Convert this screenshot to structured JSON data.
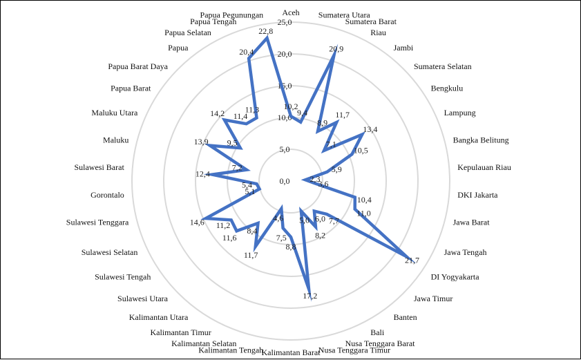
{
  "chart_data": {
    "type": "radar",
    "title": "",
    "categories": [
      "Aceh",
      "Sumatera Utara",
      "Sumatera Barat",
      "Riau",
      "Jambi",
      "Sumatera Selatan",
      "Bengkulu",
      "Lampung",
      "Bangka Belitung",
      "Kepulauan Riau",
      "DKI Jakarta",
      "Jawa Barat",
      "Jawa Tengah",
      "DI Yogyakarta",
      "Jawa Timur",
      "Banten",
      "Bali",
      "Nusa Tenggara Barat",
      "Nusa Tenggara Timur",
      "Kalimantan Barat",
      "Kalimantan Tengah",
      "Kalimantan Selatan",
      "Kalimantan Timur",
      "Kalimantan Utara",
      "Sulawesi Utara",
      "Sulawesi Tengah",
      "Sulawesi Selatan",
      "Sulawesi Tenggara",
      "Gorontalo",
      "Sulawesi Barat",
      "Maluku",
      "Maluku Utara",
      "Papua Barat",
      "Papua Barat Daya",
      "Papua",
      "Papua Selatan",
      "Papua Tengah",
      "Papua Pegunungan"
    ],
    "values": [
      10.2,
      9.4,
      20.9,
      8.9,
      11.7,
      7.1,
      13.4,
      10.5,
      5.9,
      2.3,
      3.6,
      10.4,
      11.0,
      21.7,
      7.7,
      6.0,
      8.2,
      5.0,
      17.2,
      8.8,
      7.5,
      4.6,
      11.7,
      8.4,
      11.6,
      11.2,
      14.6,
      5.1,
      5.4,
      12.4,
      7.2,
      13.9,
      9.5,
      14.2,
      11.4,
      11.3,
      20.4,
      22.8
    ],
    "value_labels": [
      "10,2",
      "9,4",
      "20,9",
      "8,9",
      "11,7",
      "7,1",
      "13,4",
      "10,5",
      "5,9",
      "2,3",
      "3,6",
      "10,4",
      "11,0",
      "21,7",
      "7,7",
      "6,0",
      "8,2",
      "5,0",
      "17,2",
      "8,8",
      "7,5",
      "4,6",
      "11,7",
      "8,4",
      "11,6",
      "11,2",
      "14,6",
      "5,1",
      "5,4",
      "12,4",
      "7,2",
      "13,9",
      "9,5",
      "14,2",
      "11,4",
      "11,3",
      "20,4",
      "22,8"
    ],
    "radial_axis": {
      "range": [
        0,
        25
      ],
      "ticks": [
        0,
        5,
        10,
        15,
        20,
        25
      ],
      "tick_labels": [
        "0,0",
        "5,0",
        "10,0",
        "15,0",
        "20,0",
        "25,0"
      ]
    },
    "grid": true,
    "legend": "none",
    "colors": {
      "series_line": "#4472C4",
      "gridline": "#D9D9D9",
      "text": "#222222"
    }
  }
}
